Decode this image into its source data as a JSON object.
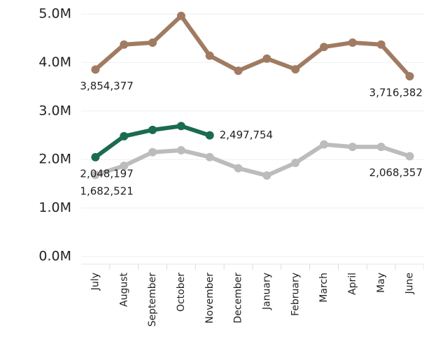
{
  "chart_data": {
    "type": "line",
    "categories": [
      "July",
      "August",
      "September",
      "October",
      "November",
      "December",
      "January",
      "February",
      "March",
      "April",
      "May",
      "June"
    ],
    "series": [
      {
        "color": "#a07b62",
        "values": [
          3854377,
          4370000,
          4410000,
          4960000,
          4140000,
          3830000,
          4080000,
          3860000,
          4320000,
          4410000,
          4370000,
          3716382
        ],
        "value_labels": [
          "3,854,377",
          null,
          null,
          null,
          null,
          null,
          null,
          null,
          null,
          null,
          null,
          "3,716,382"
        ]
      },
      {
        "color": "#bcbcbc",
        "values": [
          1682521,
          1870000,
          2150000,
          2190000,
          2050000,
          1820000,
          1670000,
          1930000,
          2310000,
          2260000,
          2260000,
          2068357
        ],
        "value_labels": [
          "1,682,521",
          null,
          null,
          null,
          null,
          null,
          null,
          null,
          null,
          null,
          null,
          "2,068,357"
        ]
      },
      {
        "color": "#1b6b50",
        "values": [
          2048197,
          2480000,
          2610000,
          2690000,
          2497754,
          null,
          null,
          null,
          null,
          null,
          null,
          null
        ],
        "value_labels": [
          "2,048,197",
          null,
          null,
          null,
          "2,497,754",
          null,
          null,
          null,
          null,
          null,
          null,
          null
        ]
      }
    ],
    "ylim": [
      0,
      5000000
    ],
    "yticks": [
      {
        "value": 0,
        "label": "0.0M"
      },
      {
        "value": 1000000,
        "label": "1.0M"
      },
      {
        "value": 2000000,
        "label": "2.0M"
      },
      {
        "value": 3000000,
        "label": "3.0M"
      },
      {
        "value": 4000000,
        "label": "4.0M"
      },
      {
        "value": 5000000,
        "label": "5.0M"
      }
    ],
    "grid": true
  }
}
